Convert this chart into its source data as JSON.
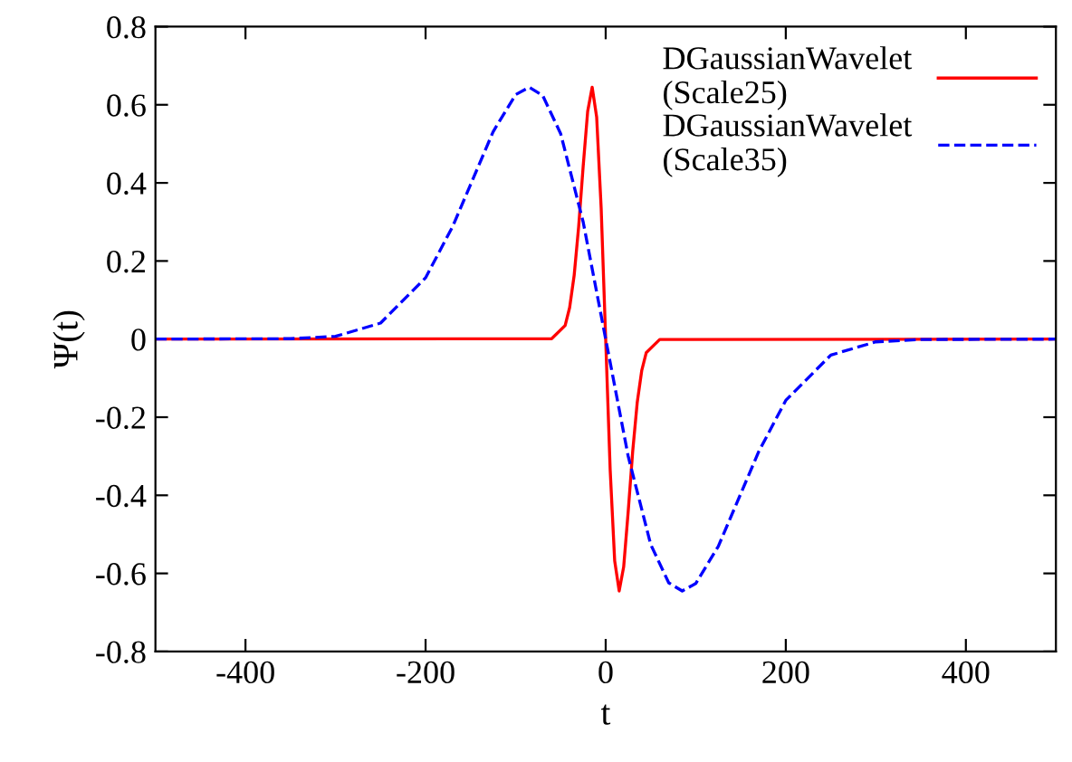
{
  "chart_data": {
    "type": "line",
    "xlabel": "t",
    "ylabel": "Ψ(t)",
    "xlim": [
      -500,
      500
    ],
    "xticks": [
      -400,
      -200,
      0,
      200,
      400
    ],
    "ylim": [
      -0.8,
      0.8
    ],
    "yticks": [
      {
        "value": -0.8,
        "label": "-0.8"
      },
      {
        "value": -0.6,
        "label": "-0.6"
      },
      {
        "value": -0.4,
        "label": "-0.4"
      },
      {
        "value": -0.2,
        "label": "-0.2"
      },
      0,
      0.2,
      0.4,
      0.6,
      0.8
    ],
    "grid": false,
    "legend": "top right",
    "series": [
      {
        "name": "DGaussianWavelet\n(Scale25)",
        "color": "#ff0000",
        "line_style": "solid",
        "x": [
          -500,
          -60,
          -45,
          -40,
          -35,
          -30,
          -25,
          -20,
          -15,
          -10,
          -5,
          0,
          5,
          10,
          15,
          20,
          25,
          30,
          35,
          40,
          45,
          60,
          500
        ],
        "values": [
          0,
          0.001,
          0.035,
          0.081,
          0.163,
          0.288,
          0.442,
          0.583,
          0.645,
          0.568,
          0.335,
          0,
          -0.335,
          -0.568,
          -0.645,
          -0.583,
          -0.442,
          -0.288,
          -0.163,
          -0.081,
          -0.035,
          -0.001,
          0
        ]
      },
      {
        "name": "DGaussianWavelet\n(Scale35)",
        "color": "#0000ff",
        "line_style": "dashed",
        "x": [
          -500,
          -350,
          -300,
          -250,
          -200,
          -170,
          -150,
          -125,
          -100,
          -85,
          -70,
          -50,
          -25,
          0,
          25,
          50,
          70,
          85,
          100,
          125,
          150,
          170,
          200,
          250,
          300,
          350,
          500
        ],
        "values": [
          0,
          0.001,
          0.007,
          0.041,
          0.157,
          0.288,
          0.396,
          0.531,
          0.626,
          0.645,
          0.624,
          0.526,
          0.3,
          0,
          -0.3,
          -0.526,
          -0.624,
          -0.645,
          -0.626,
          -0.531,
          -0.396,
          -0.288,
          -0.157,
          -0.041,
          -0.007,
          -0.001,
          0
        ]
      }
    ]
  }
}
